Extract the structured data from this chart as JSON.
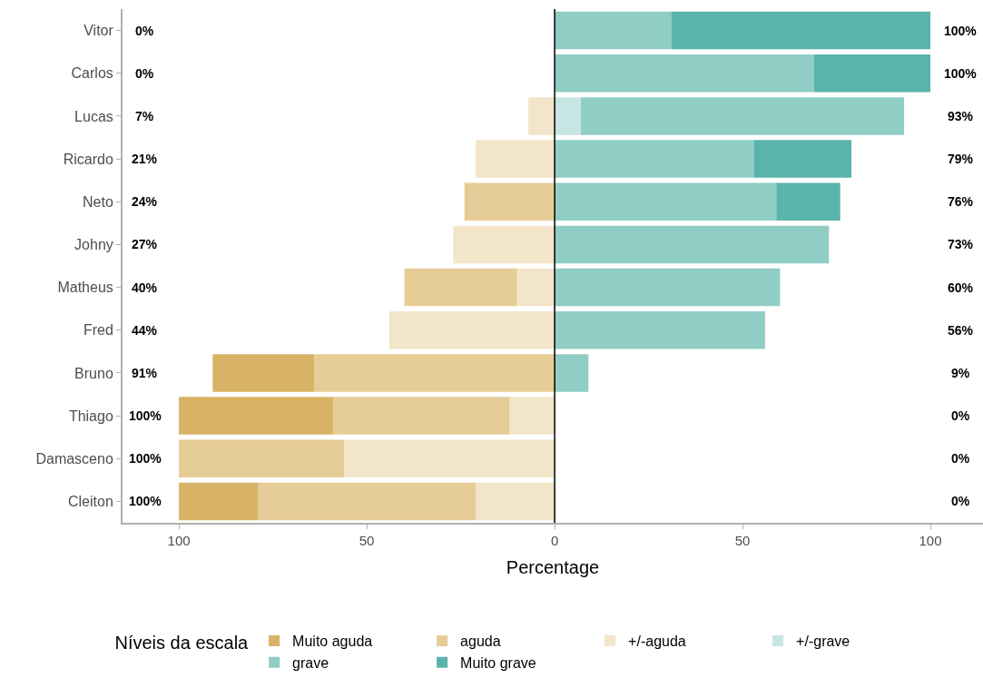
{
  "chart_data": {
    "type": "bar",
    "orientation": "horizontal",
    "stacked": true,
    "categories": [
      "Vitor",
      "Carlos",
      "Lucas",
      "Ricardo",
      "Neto",
      "Johny",
      "Matheus",
      "Fred",
      "Bruno",
      "Thiago",
      "Damasceno",
      "Cleiton"
    ],
    "series": [
      {
        "name": "+/-aguda",
        "color": "#f3e5c9",
        "values": [
          0,
          0,
          -7,
          -21,
          0,
          -27,
          -10,
          -44,
          0,
          -12,
          -56,
          -21
        ]
      },
      {
        "name": "aguda",
        "color": "#e6cc96",
        "values": [
          0,
          0,
          0,
          0,
          -24,
          0,
          -30,
          0,
          -64,
          -47,
          -44,
          -58
        ]
      },
      {
        "name": "Muito aguda",
        "color": "#d8b365",
        "values": [
          0,
          0,
          0,
          0,
          0,
          0,
          0,
          0,
          -27,
          -41,
          0,
          -21
        ]
      },
      {
        "name": "+/-grave",
        "color": "#c7e5e2",
        "values": [
          0,
          0,
          7,
          0,
          0,
          0,
          0,
          0,
          0,
          0,
          0,
          0
        ]
      },
      {
        "name": "grave",
        "color": "#90cdc5",
        "values": [
          31,
          69,
          86,
          53,
          59,
          73,
          60,
          56,
          9,
          0,
          0,
          0
        ]
      },
      {
        "name": "Muito grave",
        "color": "#5ab4ac",
        "values": [
          69,
          31,
          0,
          26,
          17,
          0,
          0,
          0,
          0,
          0,
          0,
          0
        ]
      }
    ],
    "xlabel": "Percentage",
    "legend_title": "Níveis da escala",
    "legend": "bottom",
    "xlim": [
      -115,
      114
    ],
    "xticks": [
      {
        "value": -100,
        "label": "100"
      },
      {
        "value": -50,
        "label": "50"
      },
      0,
      50,
      100
    ],
    "ref_lines": [
      {
        "axis": "x",
        "value": 0,
        "color": "#000000"
      }
    ],
    "annotations": [
      "0%",
      "100%",
      "0%",
      "100%",
      "7%",
      "93%",
      "21%",
      "79%",
      "24%",
      "76%",
      "27%",
      "73%",
      "40%",
      "60%",
      "44%",
      "56%",
      "91%",
      "9%",
      "100%",
      "0%",
      "100%",
      "0%",
      "100%",
      "0%"
    ]
  }
}
